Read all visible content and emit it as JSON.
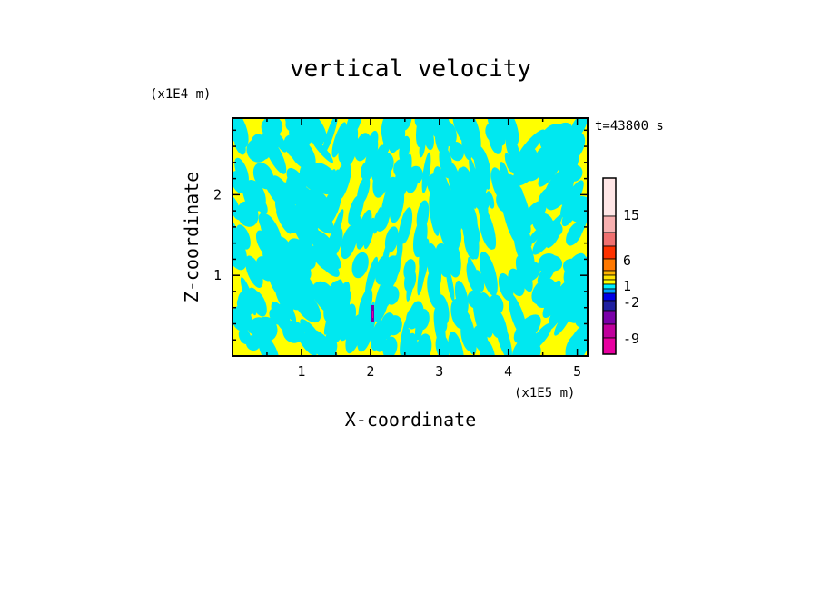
{
  "chart_data": {
    "type": "heatmap",
    "title": "vertical velocity",
    "xlabel": "X-coordinate",
    "ylabel": "Z-coordinate",
    "x_unit": "(x1E5 m)",
    "y_unit": "(x1E4 m)",
    "time_label": "t=43800 s",
    "xlim": [
      0,
      5.15
    ],
    "ylim": [
      0,
      2.95
    ],
    "x_ticks": [
      "1",
      "2",
      "3",
      "4",
      "5"
    ],
    "y_ticks": [
      "1",
      "2"
    ],
    "colorbar": {
      "tick_labels": [
        "15",
        "6",
        "1",
        "-2",
        "-9"
      ],
      "colors": [
        "#e800a0",
        "#c0009c",
        "#7a00a8",
        "#2020a0",
        "#0000e6",
        "#00a0ff",
        "#00f0ff",
        "#ffff00",
        "#ffe400",
        "#ffb400",
        "#ff7800",
        "#ff3200",
        "#f07070",
        "#f8b0b0",
        "#ffe6e6"
      ]
    },
    "dominant_colors": {
      "positive": "#ffff00",
      "negative": "#00e8f0"
    }
  }
}
